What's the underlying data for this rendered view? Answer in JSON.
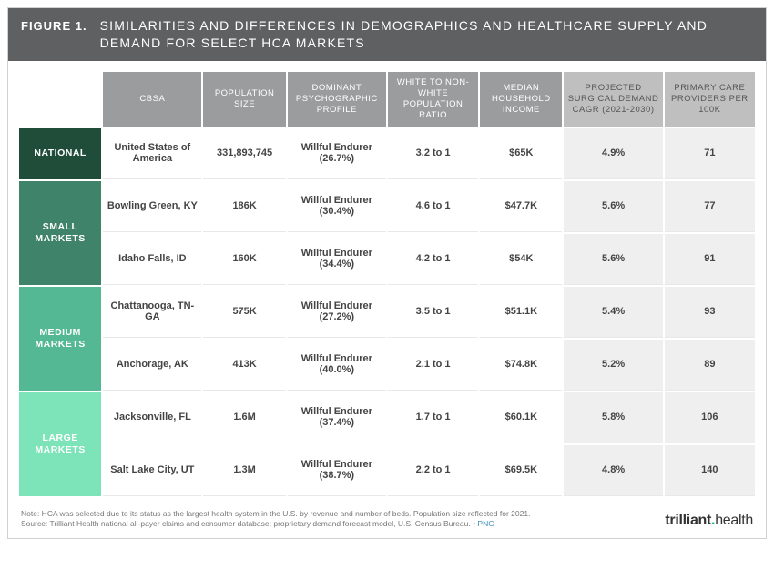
{
  "figure_label": "FIGURE 1.",
  "figure_title": "SIMILARITIES AND DIFFERENCES IN DEMOGRAPHICS AND HEALTHCARE SUPPLY AND DEMAND FOR SELECT HCA MARKETS",
  "columns": [
    {
      "label": "CBSA",
      "emph": false,
      "width": "12%"
    },
    {
      "label": "POPULATION SIZE",
      "emph": false,
      "width": "10%"
    },
    {
      "label": "DOMINANT PSYCHOGRAPHIC PROFILE",
      "emph": false,
      "width": "12%"
    },
    {
      "label": "WHITE TO NON-WHITE POPULATION RATIO",
      "emph": false,
      "width": "11%"
    },
    {
      "label": "MEDIAN HOUSEHOLD INCOME",
      "emph": false,
      "width": "10%"
    },
    {
      "label": "PROJECTED SURGICAL DEMAND CAGR (2021-2030)",
      "emph": true,
      "width": "12%"
    },
    {
      "label": "PRIMARY CARE PROVIDERS PER 100K",
      "emph": true,
      "width": "11%"
    }
  ],
  "group_col_width": "10%",
  "groups": [
    {
      "label": "NATIONAL",
      "color": "#1f4d3a",
      "rows": [
        {
          "cbsa": "United States of America",
          "pop": "331,893,745",
          "profile": "Willful Endurer (26.7%)",
          "ratio": "3.2 to 1",
          "income": "$65K",
          "cagr": "4.9%",
          "pcp": "71"
        }
      ]
    },
    {
      "label": "SMALL MARKETS",
      "color": "#3f836a",
      "rows": [
        {
          "cbsa": "Bowling Green, KY",
          "pop": "186K",
          "profile": "Willful Endurer (30.4%)",
          "ratio": "4.6 to 1",
          "income": "$47.7K",
          "cagr": "5.6%",
          "pcp": "77"
        },
        {
          "cbsa": "Idaho Falls, ID",
          "pop": "160K",
          "profile": "Willful Endurer (34.4%)",
          "ratio": "4.2 to 1",
          "income": "$54K",
          "cagr": "5.6%",
          "pcp": "91"
        }
      ]
    },
    {
      "label": "MEDIUM MARKETS",
      "color": "#54b894",
      "rows": [
        {
          "cbsa": "Chattanooga, TN-GA",
          "pop": "575K",
          "profile": "Willful Endurer (27.2%)",
          "ratio": "3.5 to 1",
          "income": "$51.1K",
          "cagr": "5.4%",
          "pcp": "93"
        },
        {
          "cbsa": "Anchorage, AK",
          "pop": "413K",
          "profile": "Willful Endurer (40.0%)",
          "ratio": "2.1 to 1",
          "income": "$74.8K",
          "cagr": "5.2%",
          "pcp": "89"
        }
      ]
    },
    {
      "label": "LARGE MARKETS",
      "color": "#7de3b8",
      "rows": [
        {
          "cbsa": "Jacksonville, FL",
          "pop": "1.6M",
          "profile": "Willful Endurer (37.4%)",
          "ratio": "1.7 to 1",
          "income": "$60.1K",
          "cagr": "5.8%",
          "pcp": "106"
        },
        {
          "cbsa": "Salt Lake City, UT",
          "pop": "1.3M",
          "profile": "Willful Endurer (38.7%)",
          "ratio": "2.2 to 1",
          "income": "$69.5K",
          "cagr": "4.8%",
          "pcp": "140"
        }
      ]
    }
  ],
  "footnote_line1": "Note: HCA was selected due to its status as the largest health system in the U.S. by revenue and number of beds. Population size reflected for 2021.",
  "footnote_line2_a": "Source: Trilliant Health national all-payer claims and consumer database; proprietary demand forecast model, U.S. Census Bureau.  •  ",
  "footnote_png": "PNG",
  "logo_a": "trilliant",
  "logo_b": "health",
  "colors": {
    "title_bg": "#5e6062",
    "header_bg": "#9a9c9e",
    "header_emph_bg": "#bfbfbf",
    "cell_emph_bg": "#efefef"
  }
}
